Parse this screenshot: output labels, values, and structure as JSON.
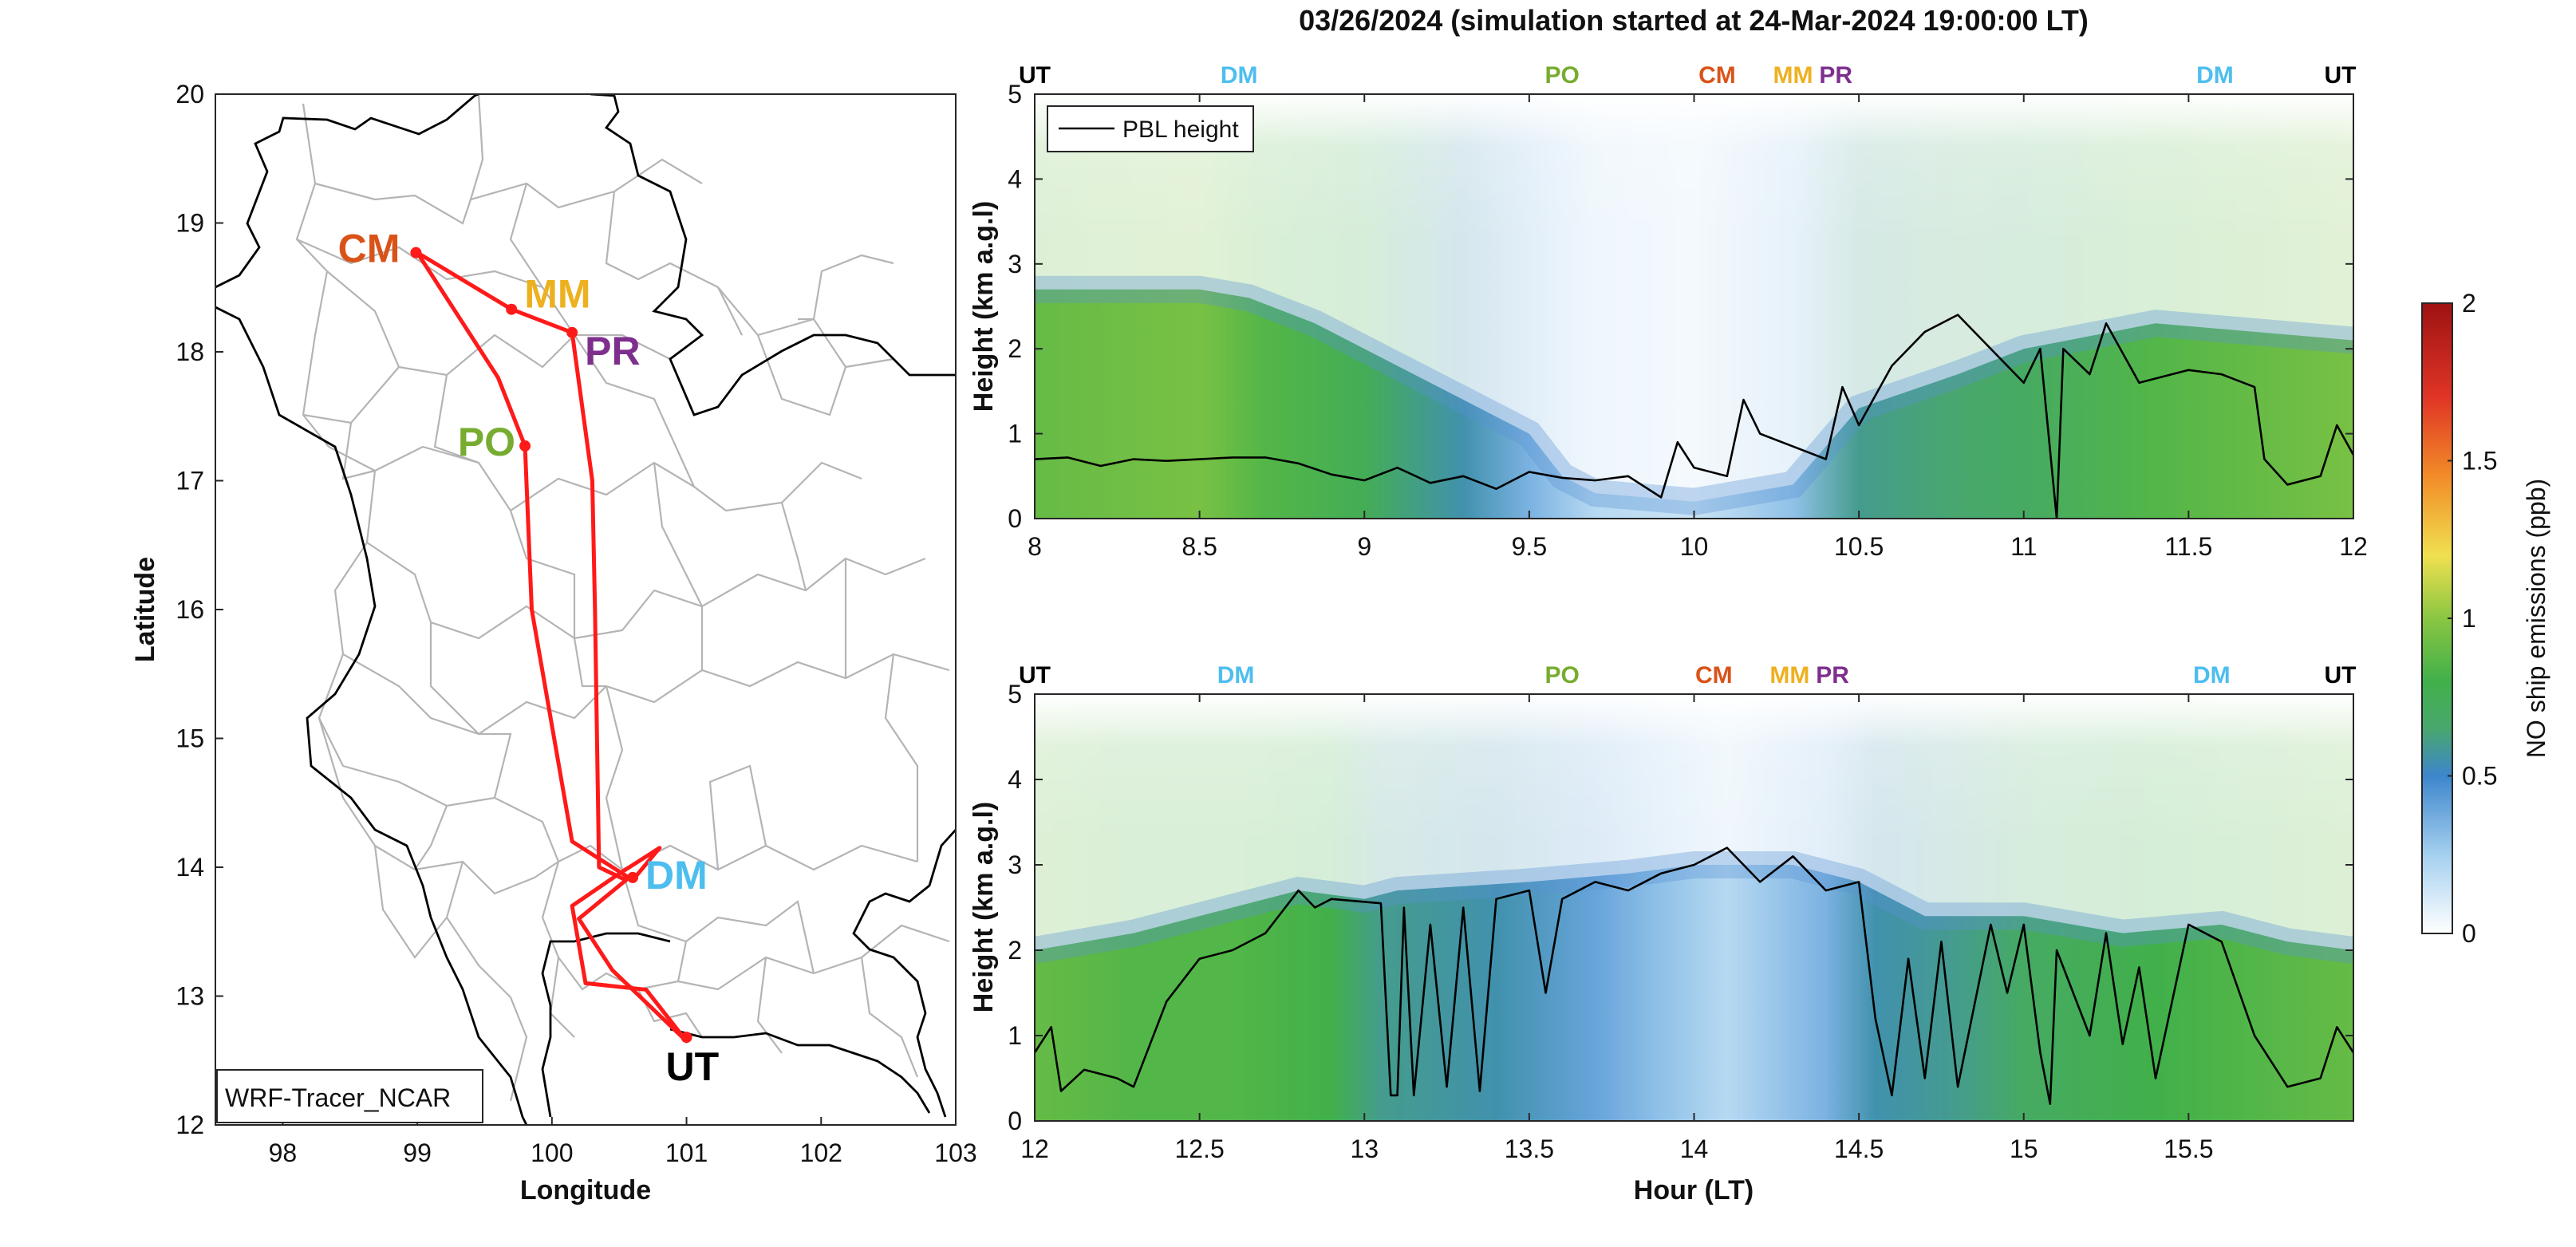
{
  "figure": {
    "title": "03/26/2024 (simulation started at 24-Mar-2024 19:00:00 LT)"
  },
  "chart_data": [
    {
      "type": "map",
      "xlabel": "Longitude",
      "ylabel": "Latitude",
      "xlim": [
        97.5,
        103
      ],
      "ylim": [
        12,
        20
      ],
      "xticks": [
        98,
        99,
        100,
        101,
        102,
        103
      ],
      "yticks": [
        12,
        13,
        14,
        15,
        16,
        17,
        18,
        19,
        20
      ],
      "legend_label": "WRF-Tracer_NCAR",
      "legend_position": "bottom-left",
      "flight_track": {
        "color": "#ff1a1a",
        "points": [
          [
            99.0,
            18.77
          ],
          [
            99.7,
            18.33
          ],
          [
            100.15,
            18.15
          ],
          [
            100.3,
            17.0
          ],
          [
            100.32,
            16.0
          ],
          [
            100.35,
            14.0
          ],
          [
            100.55,
            13.9
          ],
          [
            100.2,
            13.6
          ],
          [
            100.45,
            13.2
          ],
          [
            101.0,
            12.65
          ],
          [
            100.7,
            13.05
          ],
          [
            100.25,
            13.1
          ],
          [
            100.15,
            13.7
          ],
          [
            100.5,
            13.95
          ],
          [
            100.8,
            14.15
          ],
          [
            100.6,
            13.9
          ],
          [
            100.15,
            14.2
          ],
          [
            99.85,
            16.0
          ],
          [
            99.8,
            17.27
          ],
          [
            99.6,
            17.8
          ],
          [
            99.0,
            18.77
          ]
        ]
      },
      "sites": [
        {
          "code": "CM",
          "lon": 98.99,
          "lat": 18.77,
          "color": "#d95319"
        },
        {
          "code": "MM",
          "lon": 99.7,
          "lat": 18.33,
          "color": "#edb120"
        },
        {
          "code": "PR",
          "lon": 100.15,
          "lat": 18.15,
          "color": "#7e2f8e"
        },
        {
          "code": "PO",
          "lon": 99.8,
          "lat": 17.27,
          "color": "#77ac30"
        },
        {
          "code": "DM",
          "lon": 100.6,
          "lat": 13.92,
          "color": "#4dbeee"
        },
        {
          "code": "UT",
          "lon": 101.0,
          "lat": 12.68,
          "color": "#000000"
        }
      ]
    },
    {
      "type": "heatmap",
      "xlim": [
        8,
        12
      ],
      "ylim": [
        0,
        5
      ],
      "xticks": [
        8,
        8.5,
        9,
        9.5,
        10,
        10.5,
        11,
        11.5,
        12
      ],
      "yticks": [
        0,
        1,
        2,
        3,
        4,
        5
      ],
      "xlabel": "",
      "ylabel": "Height (km a.g.l)",
      "legend": "PBL height",
      "legend_position": "top-left",
      "site_labels": [
        {
          "code": "UT",
          "x": 8.0,
          "color": "#000000"
        },
        {
          "code": "DM",
          "x": 8.62,
          "color": "#4dbeee"
        },
        {
          "code": "PO",
          "x": 9.6,
          "color": "#77ac30"
        },
        {
          "code": "CM",
          "x": 10.07,
          "color": "#d95319"
        },
        {
          "code": "MM",
          "x": 10.3,
          "color": "#edb120"
        },
        {
          "code": "PR",
          "x": 10.43,
          "color": "#7e2f8e"
        },
        {
          "code": "DM",
          "x": 11.58,
          "color": "#4dbeee"
        },
        {
          "code": "UT",
          "x": 11.96,
          "color": "#000000"
        }
      ],
      "layer_top_km": [
        [
          8,
          2.7
        ],
        [
          8.5,
          2.7
        ],
        [
          8.65,
          2.6
        ],
        [
          8.85,
          2.3
        ],
        [
          9.0,
          2.0
        ],
        [
          9.3,
          1.4
        ],
        [
          9.5,
          1.0
        ],
        [
          9.6,
          0.5
        ],
        [
          9.7,
          0.3
        ],
        [
          10.0,
          0.2
        ],
        [
          10.3,
          0.4
        ],
        [
          10.5,
          1.3
        ],
        [
          10.8,
          1.7
        ],
        [
          11.0,
          2.0
        ],
        [
          11.4,
          2.3
        ],
        [
          11.7,
          2.2
        ],
        [
          12,
          2.1
        ]
      ],
      "max_conc_ppb": [
        [
          8,
          0.9
        ],
        [
          8.5,
          0.95
        ],
        [
          8.7,
          0.85
        ],
        [
          9.0,
          0.75
        ],
        [
          9.3,
          0.55
        ],
        [
          9.5,
          0.35
        ],
        [
          9.7,
          0.2
        ],
        [
          10.0,
          0.15
        ],
        [
          10.3,
          0.3
        ],
        [
          10.5,
          0.6
        ],
        [
          10.8,
          0.65
        ],
        [
          11.0,
          0.7
        ],
        [
          11.4,
          0.85
        ],
        [
          11.7,
          0.9
        ],
        [
          12,
          0.95
        ]
      ],
      "pbl_height_km": [
        [
          8.0,
          0.7
        ],
        [
          8.1,
          0.72
        ],
        [
          8.2,
          0.62
        ],
        [
          8.3,
          0.7
        ],
        [
          8.4,
          0.68
        ],
        [
          8.5,
          0.7
        ],
        [
          8.6,
          0.72
        ],
        [
          8.7,
          0.72
        ],
        [
          8.8,
          0.65
        ],
        [
          8.9,
          0.52
        ],
        [
          9.0,
          0.45
        ],
        [
          9.1,
          0.6
        ],
        [
          9.2,
          0.42
        ],
        [
          9.3,
          0.5
        ],
        [
          9.4,
          0.35
        ],
        [
          9.5,
          0.55
        ],
        [
          9.6,
          0.48
        ],
        [
          9.7,
          0.45
        ],
        [
          9.8,
          0.5
        ],
        [
          9.9,
          0.25
        ],
        [
          9.95,
          0.9
        ],
        [
          10.0,
          0.6
        ],
        [
          10.1,
          0.5
        ],
        [
          10.15,
          1.4
        ],
        [
          10.2,
          1.0
        ],
        [
          10.3,
          0.85
        ],
        [
          10.4,
          0.7
        ],
        [
          10.45,
          1.55
        ],
        [
          10.5,
          1.1
        ],
        [
          10.6,
          1.8
        ],
        [
          10.7,
          2.2
        ],
        [
          10.8,
          2.4
        ],
        [
          10.9,
          2.0
        ],
        [
          11.0,
          1.6
        ],
        [
          11.05,
          2.0
        ],
        [
          11.1,
          0.0
        ],
        [
          11.12,
          2.0
        ],
        [
          11.2,
          1.7
        ],
        [
          11.25,
          2.3
        ],
        [
          11.35,
          1.6
        ],
        [
          11.5,
          1.75
        ],
        [
          11.6,
          1.7
        ],
        [
          11.7,
          1.55
        ],
        [
          11.73,
          0.7
        ],
        [
          11.8,
          0.4
        ],
        [
          11.9,
          0.5
        ],
        [
          11.95,
          1.1
        ],
        [
          12.0,
          0.75
        ]
      ]
    },
    {
      "type": "heatmap",
      "xlim": [
        12,
        16
      ],
      "ylim": [
        0,
        5
      ],
      "xticks": [
        12,
        12.5,
        13,
        13.5,
        14,
        14.5,
        15,
        15.5
      ],
      "yticks": [
        0,
        1,
        2,
        3,
        4,
        5
      ],
      "xlabel": "Hour (LT)",
      "ylabel": "Height (km a.g.l)",
      "site_labels": [
        {
          "code": "UT",
          "x": 12.0,
          "color": "#000000"
        },
        {
          "code": "DM",
          "x": 12.61,
          "color": "#4dbeee"
        },
        {
          "code": "PO",
          "x": 13.6,
          "color": "#77ac30"
        },
        {
          "code": "CM",
          "x": 14.06,
          "color": "#d95319"
        },
        {
          "code": "MM",
          "x": 14.29,
          "color": "#edb120"
        },
        {
          "code": "PR",
          "x": 14.42,
          "color": "#7e2f8e"
        },
        {
          "code": "DM",
          "x": 15.57,
          "color": "#4dbeee"
        },
        {
          "code": "UT",
          "x": 15.96,
          "color": "#000000"
        }
      ],
      "layer_top_km": [
        [
          12,
          2.0
        ],
        [
          12.3,
          2.2
        ],
        [
          12.6,
          2.5
        ],
        [
          12.8,
          2.7
        ],
        [
          13.0,
          2.6
        ],
        [
          13.1,
          2.7
        ],
        [
          13.5,
          2.8
        ],
        [
          13.8,
          2.9
        ],
        [
          14.0,
          3.0
        ],
        [
          14.3,
          3.0
        ],
        [
          14.5,
          2.8
        ],
        [
          14.7,
          2.4
        ],
        [
          15.0,
          2.4
        ],
        [
          15.3,
          2.2
        ],
        [
          15.6,
          2.3
        ],
        [
          15.8,
          2.1
        ],
        [
          16,
          2.0
        ]
      ],
      "max_conc_ppb": [
        [
          12,
          0.9
        ],
        [
          12.3,
          0.85
        ],
        [
          12.6,
          0.85
        ],
        [
          12.9,
          0.8
        ],
        [
          13.05,
          0.6
        ],
        [
          13.4,
          0.55
        ],
        [
          13.7,
          0.4
        ],
        [
          13.9,
          0.3
        ],
        [
          14.1,
          0.2
        ],
        [
          14.4,
          0.35
        ],
        [
          14.55,
          0.55
        ],
        [
          14.8,
          0.6
        ],
        [
          15.0,
          0.7
        ],
        [
          15.4,
          0.8
        ],
        [
          15.7,
          0.85
        ],
        [
          16,
          0.9
        ]
      ],
      "pbl_height_km": [
        [
          12.0,
          0.8
        ],
        [
          12.05,
          1.1
        ],
        [
          12.08,
          0.35
        ],
        [
          12.15,
          0.6
        ],
        [
          12.25,
          0.5
        ],
        [
          12.3,
          0.4
        ],
        [
          12.4,
          1.4
        ],
        [
          12.5,
          1.9
        ],
        [
          12.6,
          2.0
        ],
        [
          12.7,
          2.2
        ],
        [
          12.8,
          2.7
        ],
        [
          12.85,
          2.5
        ],
        [
          12.9,
          2.6
        ],
        [
          13.05,
          2.55
        ],
        [
          13.08,
          0.3
        ],
        [
          13.1,
          0.3
        ],
        [
          13.12,
          2.5
        ],
        [
          13.15,
          0.3
        ],
        [
          13.2,
          2.3
        ],
        [
          13.25,
          0.4
        ],
        [
          13.3,
          2.5
        ],
        [
          13.35,
          0.35
        ],
        [
          13.4,
          2.6
        ],
        [
          13.5,
          2.7
        ],
        [
          13.55,
          1.5
        ],
        [
          13.6,
          2.6
        ],
        [
          13.7,
          2.8
        ],
        [
          13.8,
          2.7
        ],
        [
          13.9,
          2.9
        ],
        [
          14.0,
          3.0
        ],
        [
          14.1,
          3.2
        ],
        [
          14.2,
          2.8
        ],
        [
          14.3,
          3.1
        ],
        [
          14.4,
          2.7
        ],
        [
          14.5,
          2.8
        ],
        [
          14.55,
          1.2
        ],
        [
          14.6,
          0.3
        ],
        [
          14.65,
          1.9
        ],
        [
          14.7,
          0.5
        ],
        [
          14.75,
          2.1
        ],
        [
          14.8,
          0.4
        ],
        [
          14.9,
          2.3
        ],
        [
          14.95,
          1.5
        ],
        [
          15.0,
          2.3
        ],
        [
          15.05,
          0.8
        ],
        [
          15.08,
          0.2
        ],
        [
          15.1,
          2.0
        ],
        [
          15.2,
          1.0
        ],
        [
          15.25,
          2.2
        ],
        [
          15.3,
          0.9
        ],
        [
          15.35,
          1.8
        ],
        [
          15.4,
          0.5
        ],
        [
          15.5,
          2.3
        ],
        [
          15.6,
          2.1
        ],
        [
          15.7,
          1.0
        ],
        [
          15.8,
          0.4
        ],
        [
          15.9,
          0.5
        ],
        [
          15.95,
          1.1
        ],
        [
          16.0,
          0.8
        ]
      ]
    },
    {
      "type": "colorbar",
      "label": "NO ship emissions (ppb)",
      "range": [
        0,
        2
      ],
      "ticks": [
        0,
        0.5,
        1,
        1.5,
        2
      ],
      "colormap": [
        [
          0.0,
          "#ffffff"
        ],
        [
          0.25,
          "#a5d0ef"
        ],
        [
          0.5,
          "#3d86cc"
        ],
        [
          0.65,
          "#49a76e"
        ],
        [
          0.8,
          "#41b04a"
        ],
        [
          1.0,
          "#8ac642"
        ],
        [
          1.2,
          "#f0e050"
        ],
        [
          1.45,
          "#f28c28"
        ],
        [
          1.7,
          "#e03526"
        ],
        [
          2.0,
          "#9e1212"
        ]
      ]
    }
  ]
}
